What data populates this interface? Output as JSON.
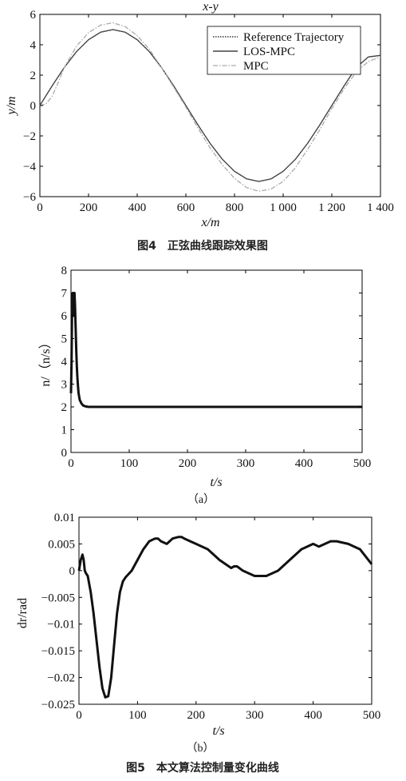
{
  "figure4": {
    "caption": "图4　正弦曲线跟踪效果图",
    "chart_data": {
      "type": "line",
      "title": "x-y",
      "xlabel": "x/m",
      "ylabel": "y/m",
      "xlim": [
        0,
        1400
      ],
      "ylim": [
        -6,
        6
      ],
      "x_ticks": [
        "0",
        "200",
        "400",
        "600",
        "800",
        "1 000",
        "1 200",
        "1 400"
      ],
      "y_ticks": [
        "6",
        "4",
        "2",
        "0",
        "−2",
        "−4",
        "−6"
      ],
      "legend_position": "top-right",
      "series": [
        {
          "name": "Reference Trajectory",
          "style": "dotted",
          "color": "#333333",
          "x": [
            0,
            50,
            100,
            150,
            200,
            250,
            300,
            350,
            400,
            450,
            500,
            550,
            600,
            650,
            700,
            750,
            800,
            850,
            900,
            950,
            1000,
            1050,
            1100,
            1150,
            1200,
            1250,
            1300,
            1350,
            1400
          ],
          "y": [
            0,
            1.29,
            2.5,
            3.54,
            4.33,
            4.83,
            5.0,
            4.83,
            4.33,
            3.54,
            2.5,
            1.29,
            0,
            -1.29,
            -2.5,
            -3.54,
            -4.33,
            -4.83,
            -5.0,
            -4.83,
            -4.33,
            -3.54,
            -2.5,
            -1.29,
            0,
            1.29,
            2.5,
            3.2,
            3.3
          ]
        },
        {
          "name": "LOS-MPC",
          "style": "solid",
          "color": "#444444",
          "x": [
            0,
            50,
            100,
            150,
            200,
            250,
            300,
            350,
            400,
            450,
            500,
            550,
            600,
            650,
            700,
            750,
            800,
            850,
            900,
            950,
            1000,
            1050,
            1100,
            1150,
            1200,
            1250,
            1300,
            1350,
            1400
          ],
          "y": [
            0,
            1.29,
            2.5,
            3.54,
            4.33,
            4.83,
            5.0,
            4.83,
            4.33,
            3.54,
            2.5,
            1.29,
            0,
            -1.29,
            -2.5,
            -3.54,
            -4.33,
            -4.83,
            -5.0,
            -4.83,
            -4.33,
            -3.54,
            -2.5,
            -1.29,
            0,
            1.29,
            2.5,
            3.2,
            3.3
          ]
        },
        {
          "name": "MPC",
          "style": "dashdot",
          "color": "#aaaaaa",
          "x": [
            0,
            25,
            50,
            75,
            100,
            150,
            200,
            250,
            300,
            350,
            400,
            450,
            500,
            550,
            600,
            650,
            700,
            750,
            800,
            850,
            900,
            950,
            1000,
            1050,
            1100,
            1150,
            1200,
            1250,
            1300,
            1350,
            1400
          ],
          "y": [
            0,
            0.1,
            0.6,
            1.5,
            2.5,
            3.9,
            4.8,
            5.3,
            5.45,
            5.2,
            4.6,
            3.7,
            2.5,
            1.2,
            -0.1,
            -1.5,
            -2.8,
            -3.9,
            -4.8,
            -5.4,
            -5.65,
            -5.5,
            -5.0,
            -4.1,
            -2.9,
            -1.6,
            -0.2,
            1.1,
            2.2,
            2.9,
            3.2
          ]
        }
      ]
    }
  },
  "figure5": {
    "caption": "图5　本文算法控制量变化曲线",
    "panel_a": {
      "sublabel": "（a）",
      "chart_data": {
        "type": "line",
        "xlabel": "t/s",
        "ylabel": "n/（n/s）",
        "xlim": [
          0,
          500
        ],
        "ylim": [
          0,
          8
        ],
        "x_ticks": [
          "0",
          "100",
          "200",
          "300",
          "400",
          "500"
        ],
        "y_ticks": [
          "8",
          "7",
          "6",
          "5",
          "4",
          "3",
          "2",
          "1",
          "0"
        ],
        "series": [
          {
            "color": "#111111",
            "x": [
              0,
              1,
              2,
              3,
              4,
              5,
              6,
              7,
              8,
              9,
              10,
              11,
              12,
              13,
              15,
              18,
              21,
              25,
              30,
              40,
              50,
              100,
              200,
              300,
              400,
              500
            ],
            "y": [
              2.6,
              4.0,
              6.8,
              7.0,
              6.0,
              6.9,
              7.0,
              6.4,
              5.5,
              4.5,
              3.8,
              3.3,
              2.9,
              2.6,
              2.3,
              2.15,
              2.06,
              2.02,
              2.0,
              2.0,
              2.0,
              2.0,
              2.0,
              2.0,
              2.0,
              2.0
            ]
          }
        ]
      }
    },
    "panel_b": {
      "sublabel": "（b）",
      "chart_data": {
        "type": "line",
        "xlabel": "t/s",
        "ylabel": "dr/rad",
        "xlim": [
          0,
          500
        ],
        "ylim": [
          -0.025,
          0.01
        ],
        "x_ticks": [
          "0",
          "100",
          "200",
          "300",
          "400",
          "500"
        ],
        "y_ticks": [
          "0.01",
          "0.005",
          "0",
          "−0.005",
          "−0.01",
          "−0.015",
          "−0.02",
          "−0.025"
        ],
        "series": [
          {
            "color": "#111111",
            "x": [
              0,
              3,
              6,
              8,
              10,
              12,
              15,
              20,
              25,
              30,
              35,
              40,
              45,
              50,
              55,
              60,
              65,
              70,
              75,
              80,
              90,
              100,
              110,
              120,
              130,
              135,
              140,
              150,
              160,
              170,
              175,
              180,
              190,
              200,
              220,
              240,
              260,
              265,
              270,
              280,
              300,
              320,
              340,
              360,
              380,
              400,
              410,
              420,
              430,
              440,
              460,
              480,
              500
            ],
            "y": [
              0,
              0.002,
              0.003,
              0.002,
              0.0,
              -0.0005,
              -0.001,
              -0.004,
              -0.008,
              -0.013,
              -0.018,
              -0.022,
              -0.0237,
              -0.0235,
              -0.02,
              -0.014,
              -0.008,
              -0.004,
              -0.002,
              -0.0012,
              0.0,
              0.002,
              0.004,
              0.0055,
              0.006,
              0.006,
              0.0055,
              0.005,
              0.006,
              0.0063,
              0.0063,
              0.006,
              0.0055,
              0.005,
              0.004,
              0.002,
              0.0005,
              0.0008,
              0.0008,
              0.0,
              -0.001,
              -0.001,
              0.0,
              0.002,
              0.004,
              0.005,
              0.0045,
              0.005,
              0.0055,
              0.0055,
              0.005,
              0.004,
              0.0012
            ]
          }
        ]
      }
    }
  }
}
